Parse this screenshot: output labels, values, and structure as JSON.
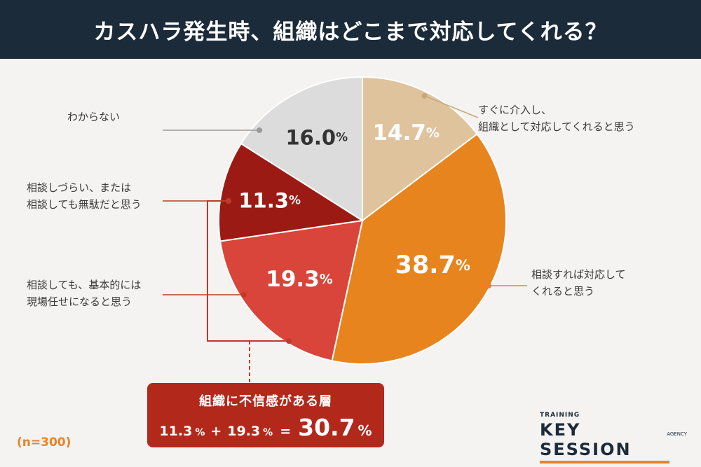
{
  "header": {
    "title": "カスハラ発生時、組織はどこまで対応してくれる？"
  },
  "chart_data": {
    "type": "pie",
    "slices": [
      {
        "value": 14.7,
        "label": "14.7",
        "category_lines": [
          "すぐに介入し、",
          "組織として対応してくれると思う"
        ],
        "color": "#dfc39d",
        "text_color": "#ffffff",
        "line_color": "#c8a77a"
      },
      {
        "value": 38.7,
        "label": "38.7",
        "category_lines": [
          "相談すれば対応して",
          "くれると思う"
        ],
        "color": "#e8841d",
        "text_color": "#ffffff",
        "line_color": "#e8841d"
      },
      {
        "value": 19.3,
        "label": "19.3",
        "category_lines": [
          "相談しても、基本的には",
          "現場任せになると思う"
        ],
        "color": "#d9453a",
        "text_color": "#ffffff",
        "line_color": "#c0392b"
      },
      {
        "value": 11.3,
        "label": "11.3",
        "category_lines": [
          "相談しづらい、または",
          "相談しても無駄だと思う"
        ],
        "color": "#9b1b14",
        "text_color": "#ffffff",
        "line_color": "#c0392b"
      },
      {
        "value": 16.0,
        "label": "16.0",
        "category_lines": [
          "わからない"
        ],
        "color": "#dcdcdc",
        "text_color": "#333333",
        "line_color": "#999999"
      }
    ],
    "percent_sign": "%"
  },
  "summary": {
    "title": "組織に不信感がある層",
    "a": "11.3",
    "plus": "+",
    "b": "19.3",
    "equals": "=",
    "total": "30.7",
    "percent": "%"
  },
  "sample_size": "(n=300)",
  "brand": {
    "small": "TRAINING",
    "name": "KEY SESSION",
    "agency": "AGENCY"
  }
}
